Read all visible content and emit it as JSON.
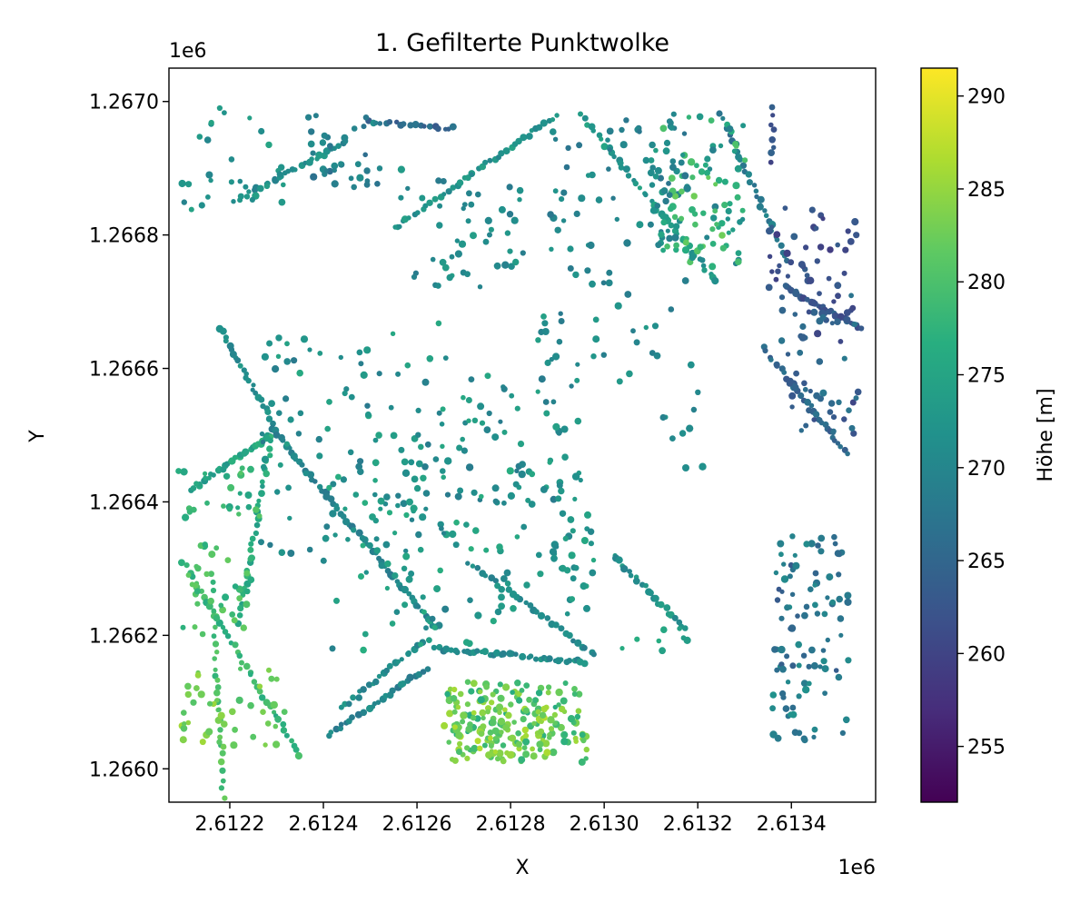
{
  "chart_data": {
    "type": "scatter",
    "title": "1. Gefilterte Punktwolke",
    "xlabel": "X",
    "ylabel": "Y",
    "x_offset_label": "1e6",
    "y_offset_label": "1e6",
    "xlim": [
      2.61207,
      2.61358
    ],
    "ylim": [
      1.26595,
      1.26705
    ],
    "x_ticks": [
      2.6122,
      2.6124,
      2.6126,
      2.6128,
      2.613,
      2.6132,
      2.6134
    ],
    "x_tick_labels": [
      "2.6122",
      "2.6124",
      "2.6126",
      "2.6128",
      "2.6130",
      "2.6132",
      "2.6134"
    ],
    "y_ticks": [
      1.266,
      1.2662,
      1.2664,
      1.2666,
      1.2668,
      1.267
    ],
    "y_tick_labels": [
      "1.2660",
      "1.2662",
      "1.2664",
      "1.2666",
      "1.2668",
      "1.2670"
    ],
    "colorbar": {
      "label": "Höhe [m]",
      "colormap": "viridis",
      "range": [
        252,
        291.5
      ],
      "ticks": [
        255,
        260,
        265,
        270,
        275,
        280,
        285,
        290
      ],
      "tick_labels": [
        "255",
        "260",
        "265",
        "270",
        "275",
        "280",
        "285",
        "290"
      ]
    },
    "grid": false,
    "legend": "none",
    "point_groups": [
      {
        "shape": "line",
        "from": [
          2.61218,
          1.26666
        ],
        "to": [
          2.61229,
          1.26652
        ],
        "z": 271,
        "n": 24
      },
      {
        "shape": "line",
        "from": [
          2.61229,
          1.26651
        ],
        "to": [
          2.61264,
          1.26621
        ],
        "z": 270,
        "n": 60
      },
      {
        "shape": "line",
        "from": [
          2.61212,
          1.26642
        ],
        "to": [
          2.61229,
          1.2665
        ],
        "z": 275,
        "n": 30
      },
      {
        "shape": "line",
        "from": [
          2.61229,
          1.2665
        ],
        "to": [
          2.61222,
          1.26622
        ],
        "z": 276,
        "n": 30
      },
      {
        "shape": "line",
        "from": [
          2.6121,
          1.26631
        ],
        "to": [
          2.61235,
          1.26602
        ],
        "z": 278,
        "n": 40
      },
      {
        "shape": "line",
        "from": [
          2.61216,
          1.26629
        ],
        "to": [
          2.61219,
          1.26592
        ],
        "z": 280,
        "n": 30
      },
      {
        "shape": "line",
        "from": [
          2.61241,
          1.26605
        ],
        "to": [
          2.61262,
          1.26615
        ],
        "z": 270,
        "n": 28
      },
      {
        "shape": "line",
        "from": [
          2.61264,
          1.26618
        ],
        "to": [
          2.61296,
          1.26616
        ],
        "z": 271,
        "n": 40
      },
      {
        "shape": "line",
        "from": [
          2.61244,
          1.26609
        ],
        "to": [
          2.61261,
          1.26619
        ],
        "z": 271,
        "n": 22
      },
      {
        "shape": "line",
        "from": [
          2.61221,
          1.26685
        ],
        "to": [
          2.61245,
          1.26694
        ],
        "z": 271,
        "n": 30
      },
      {
        "shape": "line",
        "from": [
          2.61255,
          1.26681
        ],
        "to": [
          2.6129,
          1.26698
        ],
        "z": 272,
        "n": 40
      },
      {
        "shape": "line",
        "from": [
          2.61295,
          1.26698
        ],
        "to": [
          2.61324,
          1.26673
        ],
        "z": 273,
        "n": 40
      },
      {
        "shape": "line",
        "from": [
          2.61325,
          1.26698
        ],
        "to": [
          2.61339,
          1.26676
        ],
        "z": 268,
        "n": 30
      },
      {
        "shape": "line",
        "from": [
          2.61339,
          1.26672
        ],
        "to": [
          2.61355,
          1.26666
        ],
        "z": 263,
        "n": 30
      },
      {
        "shape": "line",
        "from": [
          2.61334,
          1.26663
        ],
        "to": [
          2.61352,
          1.26647
        ],
        "z": 265,
        "n": 30
      },
      {
        "shape": "line",
        "from": [
          2.61271,
          1.26631
        ],
        "to": [
          2.61298,
          1.26617
        ],
        "z": 271,
        "n": 30
      },
      {
        "shape": "line",
        "from": [
          2.61302,
          1.26632
        ],
        "to": [
          2.61317,
          1.26621
        ],
        "z": 272,
        "n": 24
      },
      {
        "shape": "line",
        "from": [
          2.61336,
          1.26699
        ],
        "to": [
          2.61336,
          1.26691
        ],
        "z": 262,
        "n": 8
      },
      {
        "shape": "line",
        "from": [
          2.6125,
          1.26697
        ],
        "to": [
          2.61268,
          1.26696
        ],
        "z": 265,
        "n": 18
      },
      {
        "shape": "box",
        "x": [
          2.61266,
          2.61296
        ],
        "y": [
          1.26601,
          1.26613
        ],
        "z": 281,
        "n": 170,
        "spread": 5
      },
      {
        "shape": "box",
        "x": [
          2.61267,
          2.61289
        ],
        "y": [
          1.26601,
          1.26609
        ],
        "z": 284,
        "n": 60,
        "spread": 3
      },
      {
        "shape": "box",
        "x": [
          2.6131,
          2.6133
        ],
        "y": [
          1.26675,
          1.26698
        ],
        "z": 275,
        "n": 90,
        "spread": 6
      },
      {
        "shape": "box",
        "x": [
          2.61313,
          2.61326
        ],
        "y": [
          1.26678,
          1.2669
        ],
        "z": 280,
        "n": 25,
        "spread": 3
      },
      {
        "shape": "box",
        "x": [
          2.61288,
          2.61318
        ],
        "y": [
          1.26678,
          1.26697
        ],
        "z": 270,
        "n": 60,
        "spread": 3
      },
      {
        "shape": "box",
        "x": [
          2.61255,
          2.61283
        ],
        "y": [
          1.26672,
          1.2669
        ],
        "z": 271,
        "n": 50,
        "spread": 3
      },
      {
        "shape": "box",
        "x": [
          2.61237,
          2.61253
        ],
        "y": [
          1.26687,
          1.26698
        ],
        "z": 269,
        "n": 35,
        "spread": 3
      },
      {
        "shape": "box",
        "x": [
          2.6121,
          2.61232
        ],
        "y": [
          1.26684,
          1.26699
        ],
        "z": 272,
        "n": 30,
        "spread": 3
      },
      {
        "shape": "box",
        "x": [
          2.6121,
          2.61232
        ],
        "y": [
          1.26603,
          1.26615
        ],
        "z": 283,
        "n": 45,
        "spread": 3
      },
      {
        "shape": "box",
        "x": [
          2.61209,
          2.61225
        ],
        "y": [
          1.2662,
          1.26634
        ],
        "z": 279,
        "n": 35,
        "spread": 3
      },
      {
        "shape": "box",
        "x": [
          2.61209,
          2.61227
        ],
        "y": [
          1.26637,
          1.26645
        ],
        "z": 278,
        "n": 25,
        "spread": 3
      },
      {
        "shape": "box",
        "x": [
          2.61226,
          2.61262
        ],
        "y": [
          1.2663,
          1.26665
        ],
        "z": 272,
        "n": 80,
        "spread": 4
      },
      {
        "shape": "box",
        "x": [
          2.6125,
          2.61295
        ],
        "y": [
          1.2664,
          1.26668
        ],
        "z": 272,
        "n": 90,
        "spread": 4
      },
      {
        "shape": "box",
        "x": [
          2.6124,
          2.6128
        ],
        "y": [
          1.26617,
          1.26645
        ],
        "z": 273,
        "n": 70,
        "spread": 4
      },
      {
        "shape": "box",
        "x": [
          2.61277,
          2.61298
        ],
        "y": [
          1.26623,
          1.26645
        ],
        "z": 273,
        "n": 55,
        "spread": 3
      },
      {
        "shape": "box",
        "x": [
          2.61287,
          2.61318
        ],
        "y": [
          1.26655,
          1.26675
        ],
        "z": 271,
        "n": 30,
        "spread": 3
      },
      {
        "shape": "box",
        "x": [
          2.61336,
          2.61352
        ],
        "y": [
          1.26615,
          1.26635
        ],
        "z": 267,
        "n": 70,
        "spread": 4
      },
      {
        "shape": "box",
        "x": [
          2.61336,
          2.61352
        ],
        "y": [
          1.26604,
          1.26616
        ],
        "z": 269,
        "n": 30,
        "spread": 3
      },
      {
        "shape": "box",
        "x": [
          2.61338,
          2.61354
        ],
        "y": [
          1.2665,
          1.26671
        ],
        "z": 264,
        "n": 60,
        "spread": 4
      },
      {
        "shape": "box",
        "x": [
          2.61335,
          2.61354
        ],
        "y": [
          1.26672,
          1.26684
        ],
        "z": 262,
        "n": 40,
        "spread": 3
      },
      {
        "shape": "box",
        "x": [
          2.61303,
          2.61318
        ],
        "y": [
          1.26617,
          1.26622
        ],
        "z": 275,
        "n": 8,
        "spread": 2
      },
      {
        "shape": "box",
        "x": [
          2.61311,
          2.61322
        ],
        "y": [
          1.26643,
          1.26662
        ],
        "z": 271,
        "n": 10,
        "spread": 2
      }
    ]
  }
}
